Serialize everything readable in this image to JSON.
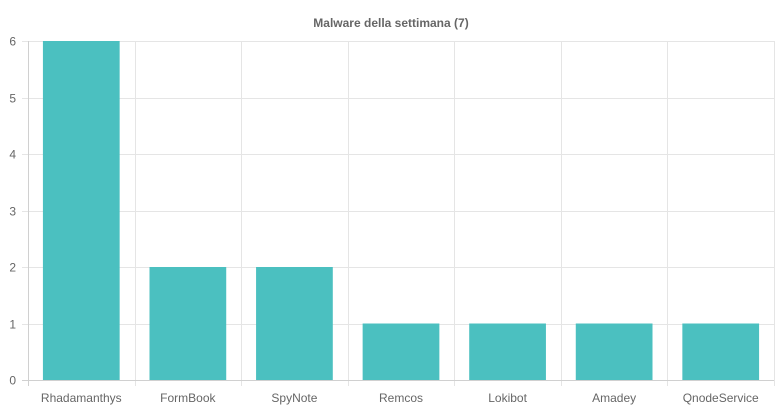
{
  "chart_data": {
    "type": "bar",
    "title": "Malware della settimana (7)",
    "categories": [
      "Rhadamanthys",
      "FormBook",
      "SpyNote",
      "Remcos",
      "Lokibot",
      "Amadey",
      "QnodeService"
    ],
    "values": [
      6,
      2,
      2,
      1,
      1,
      1,
      1
    ],
    "ylim": [
      0,
      6
    ],
    "yticks": [
      "0",
      "1",
      "2",
      "3",
      "4",
      "5",
      "6"
    ],
    "xlabel": "",
    "ylabel": "",
    "grid": true,
    "legend": "none",
    "bar_color": "#4bc0c0",
    "grid_color": "#e5e5e5",
    "text_color": "#666666"
  }
}
